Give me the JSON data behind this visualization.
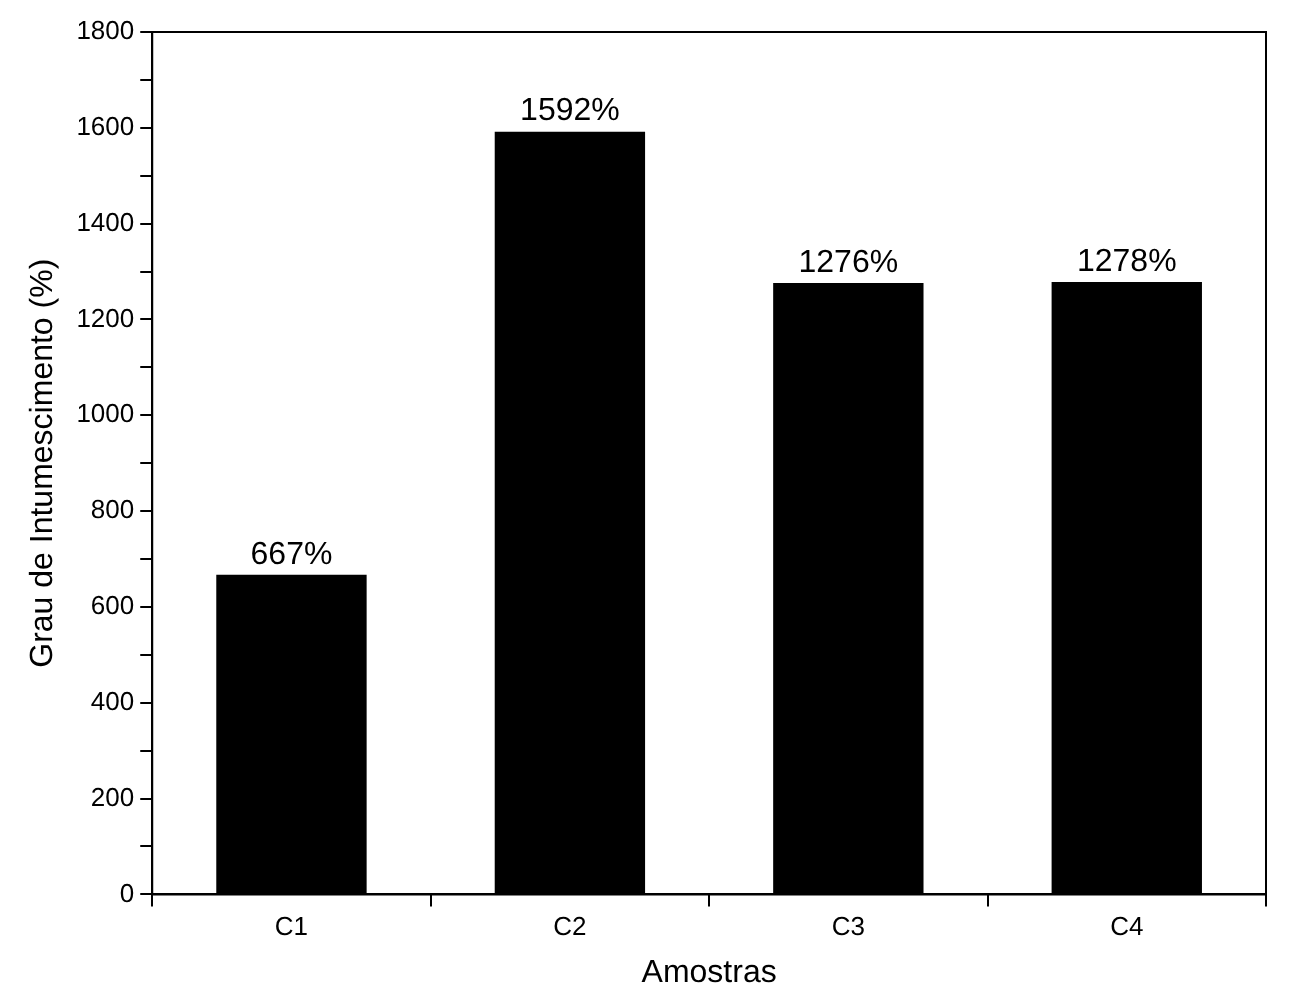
{
  "chart_data": {
    "type": "bar",
    "xlabel": "Amostras",
    "ylabel": "Grau de Intumescimento (%)",
    "categories": [
      "C1",
      "C2",
      "C3",
      "C4"
    ],
    "values": [
      667,
      1592,
      1276,
      1278
    ],
    "value_labels": [
      "667%",
      "1592%",
      "1276%",
      "1278%"
    ],
    "color": "#000000",
    "ylim": [
      0,
      1800
    ],
    "yticks": [
      0,
      200,
      400,
      600,
      800,
      1000,
      1200,
      1400,
      1600,
      1800
    ],
    "grid": false,
    "legend": false
  }
}
